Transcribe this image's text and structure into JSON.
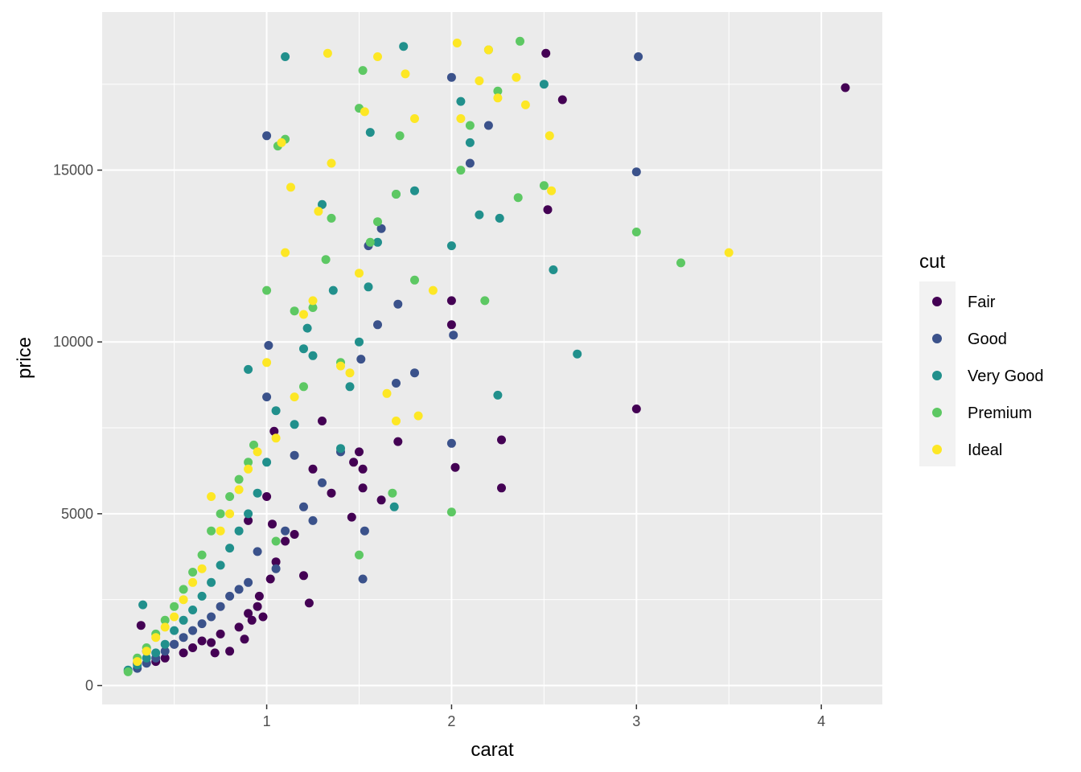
{
  "chart_data": {
    "type": "scatter",
    "title": "",
    "xlabel": "carat",
    "ylabel": "price",
    "xlim": [
      0.11,
      4.33
    ],
    "ylim": [
      -550,
      19600
    ],
    "x_ticks": [
      1,
      2,
      3,
      4
    ],
    "x_tick_labels": [
      "1",
      "2",
      "3",
      "4"
    ],
    "x_minor_ticks": [
      0.5,
      1.5,
      2.5,
      3.5
    ],
    "y_ticks": [
      0,
      5000,
      10000,
      15000
    ],
    "y_tick_labels": [
      "0",
      "5000",
      "10000",
      "15000"
    ],
    "y_minor_ticks": [
      2500,
      7500,
      12500,
      17500
    ],
    "grid": true,
    "legend": {
      "title": "cut",
      "position": "right",
      "entries": [
        "Fair",
        "Good",
        "Very Good",
        "Premium",
        "Ideal"
      ]
    },
    "colors": {
      "Fair": "#440154",
      "Good": "#3b528b",
      "Very Good": "#21908c",
      "Premium": "#5dc863",
      "Ideal": "#fde725",
      "panel": "#ebebeb",
      "grid": "#ffffff"
    },
    "series": [
      {
        "name": "Fair",
        "x": [
          4.13,
          2.51,
          2.6,
          3.0,
          2.52,
          2.27,
          2.02,
          2.27,
          2.0,
          2.0,
          1.52,
          1.5,
          1.52,
          1.47,
          1.46,
          1.71,
          1.62,
          1.3,
          1.25,
          1.23,
          1.2,
          1.1,
          1.05,
          1.03,
          1.0,
          0.98,
          0.95,
          0.92,
          0.9,
          0.88,
          0.85,
          0.8,
          0.75,
          0.72,
          0.7,
          0.65,
          0.6,
          0.55,
          0.5,
          0.45,
          0.4,
          0.35,
          0.32,
          0.3,
          0.96,
          1.02,
          1.15,
          1.35,
          0.9,
          1.04
        ],
        "y": [
          17400,
          18400,
          17050,
          8050,
          13850,
          7150,
          6350,
          5750,
          11200,
          10500,
          5750,
          6800,
          6300,
          6500,
          4900,
          7100,
          5400,
          7700,
          6300,
          2400,
          3200,
          4200,
          3600,
          4700,
          5500,
          2000,
          2300,
          1900,
          2100,
          1350,
          1700,
          1000,
          1500,
          950,
          1250,
          1300,
          1100,
          950,
          1200,
          800,
          700,
          1000,
          1750,
          650,
          2600,
          3100,
          4400,
          5600,
          4800,
          7400
        ]
      },
      {
        "name": "Good",
        "x": [
          3.01,
          3.0,
          1.0,
          2.0,
          1.53,
          1.52,
          1.55,
          1.8,
          1.62,
          2.0,
          2.01,
          1.7,
          1.71,
          1.51,
          1.25,
          1.2,
          1.1,
          1.05,
          1.01,
          1.0,
          0.95,
          0.9,
          0.85,
          0.8,
          0.75,
          0.7,
          0.65,
          0.6,
          0.55,
          0.5,
          0.45,
          0.4,
          0.35,
          0.3,
          1.3,
          1.4,
          2.2,
          2.1,
          1.6,
          1.15
        ],
        "y": [
          18300,
          14950,
          16000,
          7050,
          4500,
          3100,
          12800,
          9100,
          13300,
          17700,
          10200,
          8800,
          11100,
          9500,
          4800,
          5200,
          4500,
          3400,
          9900,
          8400,
          3900,
          3000,
          2800,
          2600,
          2300,
          2000,
          1800,
          1600,
          1400,
          1200,
          1000,
          800,
          650,
          500,
          5900,
          6800,
          16300,
          15200,
          10500,
          6700
        ]
      },
      {
        "name": "Very Good",
        "x": [
          1.1,
          1.74,
          2.5,
          2.55,
          2.68,
          2.26,
          2.25,
          1.69,
          1.56,
          1.36,
          1.22,
          0.9,
          0.33,
          1.6,
          1.5,
          1.45,
          1.7,
          2.0,
          2.05,
          1.8,
          1.2,
          1.3,
          1.4,
          1.05,
          1.0,
          0.95,
          0.9,
          0.85,
          0.8,
          0.75,
          0.7,
          0.65,
          0.6,
          0.55,
          0.5,
          0.45,
          0.4,
          0.35,
          0.3,
          0.25,
          1.15,
          1.25,
          1.55,
          2.1,
          2.15
        ],
        "y": [
          18300,
          18600,
          17500,
          12100,
          9650,
          13600,
          8450,
          5200,
          16100,
          11500,
          10400,
          9200,
          2350,
          12900,
          10000,
          8700,
          14300,
          12800,
          17000,
          14400,
          9800,
          14000,
          6900,
          8000,
          6500,
          5600,
          5000,
          4500,
          4000,
          3500,
          3000,
          2600,
          2200,
          1900,
          1600,
          1200,
          950,
          800,
          600,
          450,
          7600,
          9600,
          11600,
          15800,
          13700
        ]
      },
      {
        "name": "Premium",
        "x": [
          2.37,
          3.0,
          3.24,
          2.5,
          2.36,
          2.18,
          2.2,
          2.0,
          2.1,
          1.52,
          1.5,
          1.5,
          1.1,
          1.06,
          1.05,
          1.72,
          1.7,
          1.68,
          1.56,
          1.35,
          1.32,
          1.2,
          1.0,
          0.93,
          0.9,
          0.85,
          0.8,
          0.75,
          0.7,
          0.65,
          0.6,
          0.55,
          0.5,
          0.45,
          0.4,
          0.35,
          0.3,
          0.25,
          1.6,
          1.8,
          2.05,
          2.25,
          1.4,
          1.15,
          1.25
        ],
        "y": [
          18750,
          13200,
          12300,
          14550,
          14200,
          11200,
          18500,
          5050,
          16300,
          17900,
          16800,
          3800,
          15900,
          15700,
          4200,
          16000,
          14300,
          5600,
          12900,
          13600,
          12400,
          8700,
          11500,
          7000,
          6500,
          6000,
          5500,
          5000,
          4500,
          3800,
          3300,
          2800,
          2300,
          1900,
          1500,
          1100,
          800,
          400,
          13500,
          11800,
          15000,
          17300,
          9400,
          10900,
          11000
        ]
      },
      {
        "name": "Ideal",
        "x": [
          3.5,
          2.53,
          2.54,
          2.35,
          2.4,
          2.2,
          2.25,
          2.03,
          2.05,
          1.33,
          1.35,
          1.08,
          1.1,
          1.13,
          1.53,
          1.6,
          1.8,
          1.82,
          1.65,
          1.7,
          1.5,
          1.45,
          1.28,
          1.2,
          1.15,
          1.05,
          1.0,
          0.95,
          0.9,
          0.85,
          0.8,
          0.75,
          0.7,
          0.65,
          0.6,
          0.55,
          0.5,
          0.45,
          0.4,
          0.35,
          0.3,
          1.9,
          2.15,
          1.25,
          1.4,
          1.75
        ],
        "y": [
          12600,
          16000,
          14400,
          17700,
          16900,
          18500,
          17100,
          18700,
          16500,
          18400,
          15200,
          15800,
          12600,
          14500,
          16700,
          18300,
          16500,
          7850,
          8500,
          7700,
          12000,
          9100,
          13800,
          10800,
          8400,
          7200,
          9400,
          6800,
          6300,
          5700,
          5000,
          4500,
          5500,
          3400,
          3000,
          2500,
          2000,
          1700,
          1400,
          1000,
          700,
          11500,
          17600,
          11200,
          9300,
          17800
        ]
      }
    ]
  }
}
